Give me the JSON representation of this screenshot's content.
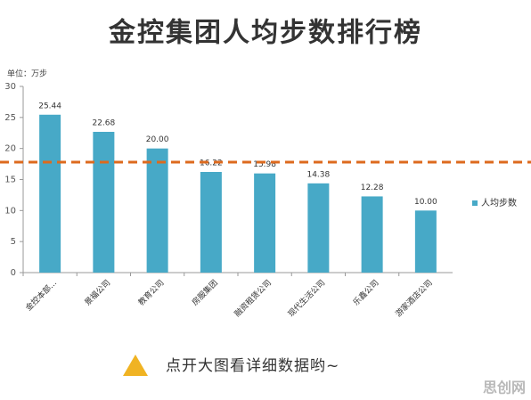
{
  "chart_data": {
    "type": "bar",
    "title": "金控集团人均步数排行榜",
    "unit_label": "单位：万步",
    "categories": [
      "金控本部...",
      "景福公司",
      "教育公司",
      "房服集团",
      "融资租赁公司",
      "现代生活公司",
      "乐鑫公司",
      "游家酒店公司"
    ],
    "series": [
      {
        "name": "人均步数",
        "color": "#47a9c7",
        "values": [
          25.44,
          22.68,
          20.0,
          16.22,
          15.98,
          14.38,
          12.28,
          10.0
        ],
        "value_labels": [
          "25.44",
          "22.68",
          "20.00",
          "16.22",
          "15.98",
          "14.38",
          "12.28",
          "10.00"
        ]
      }
    ],
    "ylim": [
      0,
      30
    ],
    "yticks": [
      0,
      5,
      10,
      15,
      20,
      25,
      30
    ],
    "grid": false,
    "legend": "right",
    "reference_line": {
      "value": 17.8,
      "color": "#dd6a1e"
    },
    "footer_text": "点开大图看详细数据哟~",
    "watermark": "思创网"
  }
}
